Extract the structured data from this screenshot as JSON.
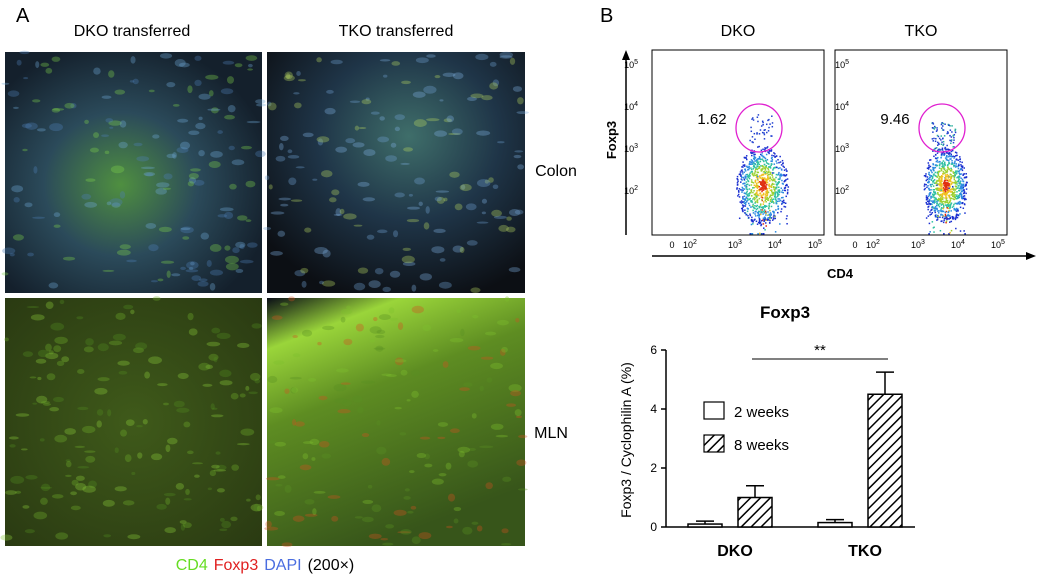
{
  "panel_a": {
    "label": "A",
    "columns": [
      "DKO transferred",
      "TKO transferred"
    ],
    "rows": [
      "Colon",
      "MLN"
    ],
    "legend": [
      {
        "text": "CD4",
        "color": "#66dd22"
      },
      {
        "text": "Foxp3",
        "color": "#e02020"
      },
      {
        "text": "DAPI",
        "color": "#4a6de0"
      },
      {
        "text": "(200×)",
        "color": "#000000"
      }
    ]
  },
  "panel_b": {
    "label": "B",
    "flow": {
      "plots": [
        {
          "title": "DKO",
          "gate_percent": "1.62"
        },
        {
          "title": "TKO",
          "gate_percent": "9.46"
        }
      ],
      "y_axis_label": "Foxp3",
      "x_axis_label": "CD4",
      "y_ticks": [
        {
          "base": "10",
          "exponent": "5"
        },
        {
          "base": "10",
          "exponent": "4"
        },
        {
          "base": "10",
          "exponent": "3"
        },
        {
          "base": "10",
          "exponent": "2"
        }
      ],
      "x_ticks": [
        {
          "base": "0",
          "exponent": ""
        },
        {
          "base": "10",
          "exponent": "2"
        },
        {
          "base": "10",
          "exponent": "3"
        },
        {
          "base": "10",
          "exponent": "4"
        },
        {
          "base": "10",
          "exponent": "5"
        }
      ]
    }
  },
  "chart_data": {
    "type": "bar",
    "title": "Foxp3",
    "y_label": "Foxp3 / Cyclophilin A (%)",
    "categories": [
      "DKO",
      "TKO"
    ],
    "series": [
      {
        "name": "2 weeks",
        "color": "#ffffff",
        "pattern": "none",
        "values": [
          0.1,
          0.15
        ],
        "errors": [
          0.1,
          0.1
        ]
      },
      {
        "name": "8 weeks",
        "color": "#ffffff",
        "pattern": "hatch",
        "values": [
          1.0,
          4.5
        ],
        "errors": [
          0.4,
          0.75
        ]
      }
    ],
    "ylim": [
      0,
      6
    ],
    "yticks": [
      0,
      2,
      4,
      6
    ],
    "annotation": "**"
  }
}
